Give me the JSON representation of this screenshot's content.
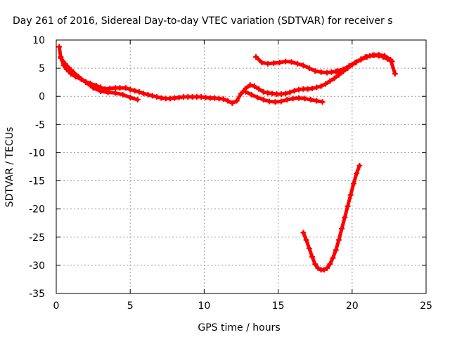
{
  "chart_data": {
    "type": "scatter",
    "title": "Day 261 of 2016, Sidereal Day-to-day VTEC variation (SDTVAR) for receiver s",
    "xlabel": "GPS time / hours",
    "ylabel": "SDTVAR / TECUs",
    "xlim": [
      0,
      25
    ],
    "ylim": [
      -35,
      10
    ],
    "xticks": [
      "0",
      "5",
      "10",
      "15",
      "20",
      "25"
    ],
    "yticks": [
      "10",
      "5",
      "0",
      "-5",
      "-10",
      "-15",
      "-20",
      "-25",
      "-30",
      "-35"
    ],
    "grid": true,
    "series_color": "#ff0000",
    "series": [
      {
        "x": [
          0.2,
          0.3,
          0.5,
          0.7,
          1.0,
          1.3,
          1.7,
          2.0,
          2.3,
          2.7,
          3.0,
          3.3,
          3.6,
          4.0,
          4.3,
          4.7,
          5.0,
          5.3,
          5.6,
          5.9,
          6.2,
          6.5,
          6.8,
          7.1,
          7.4,
          7.7,
          8.0,
          8.3,
          8.6,
          8.9,
          9.2,
          9.5,
          9.8,
          10.1,
          10.4,
          10.7,
          11.0,
          11.3,
          11.6,
          11.9,
          12.2,
          12.5,
          12.8,
          13.1,
          13.4,
          13.7,
          14.0,
          14.3,
          14.6,
          14.9,
          15.2,
          15.5,
          15.8,
          16.1,
          16.4,
          16.7,
          17.0,
          17.3,
          17.6,
          17.9,
          18.2,
          18.5,
          18.8,
          19.1,
          19.4,
          19.7,
          20.0,
          20.3,
          20.6,
          20.9,
          21.2,
          21.5,
          21.8,
          22.1,
          22.4,
          22.7
        ],
        "y": [
          8.8,
          7.0,
          5.5,
          4.8,
          4.0,
          3.5,
          3.0,
          2.6,
          2.3,
          1.9,
          1.6,
          1.3,
          1.4,
          1.5,
          1.5,
          1.5,
          1.2,
          1.0,
          0.8,
          0.5,
          0.3,
          0.1,
          -0.1,
          -0.3,
          -0.4,
          -0.4,
          -0.3,
          -0.2,
          -0.1,
          -0.1,
          -0.1,
          -0.1,
          -0.1,
          -0.2,
          -0.3,
          -0.3,
          -0.4,
          -0.5,
          -0.8,
          -1.2,
          -0.8,
          0.5,
          1.4,
          2.0,
          1.8,
          1.3,
          0.8,
          0.6,
          0.5,
          0.4,
          0.4,
          0.5,
          0.7,
          1.0,
          1.2,
          1.3,
          1.3,
          1.4,
          1.6,
          1.8,
          2.2,
          2.7,
          3.2,
          3.8,
          4.4,
          5.0,
          5.6,
          6.1,
          6.6,
          7.0,
          7.2,
          7.3,
          7.2,
          7.0,
          6.6,
          6.2
        ]
      },
      {
        "x": [
          0.3,
          0.6,
          1.0,
          1.5,
          2.0,
          2.5,
          3.0,
          3.5,
          4.0,
          4.5,
          5.0,
          5.5
        ],
        "y": [
          6.8,
          5.8,
          4.7,
          3.5,
          2.5,
          1.5,
          0.9,
          0.7,
          0.6,
          0.3,
          -0.2,
          -0.6
        ]
      },
      {
        "x": [
          12.8,
          13.2,
          13.6,
          14.0,
          14.4,
          14.8,
          15.2,
          15.6,
          16.0,
          16.4,
          16.8,
          17.2,
          17.6,
          18.0
        ],
        "y": [
          0.8,
          0.3,
          -0.2,
          -0.6,
          -0.9,
          -1.0,
          -0.9,
          -0.6,
          -0.4,
          -0.3,
          -0.4,
          -0.6,
          -0.8,
          -1.0
        ]
      },
      {
        "x": [
          13.5,
          13.9,
          14.3,
          14.7,
          15.1,
          15.5,
          15.9,
          16.3,
          16.7,
          17.1,
          17.5,
          17.9,
          18.3,
          18.6,
          18.9,
          19.2
        ],
        "y": [
          7.0,
          6.0,
          5.8,
          5.9,
          6.0,
          6.2,
          6.1,
          5.8,
          5.5,
          5.0,
          4.5,
          4.3,
          4.2,
          4.3,
          4.4,
          4.5
        ]
      },
      {
        "x": [
          19.0,
          19.4,
          19.8,
          20.2,
          20.6,
          21.0,
          21.4,
          21.8,
          22.2,
          22.6,
          22.9
        ],
        "y": [
          4.5,
          4.8,
          5.4,
          6.0,
          6.5,
          7.0,
          7.3,
          7.4,
          7.2,
          6.5,
          4.0
        ]
      },
      {
        "x": [
          16.7,
          16.9,
          17.1,
          17.3,
          17.5,
          17.7,
          17.9,
          18.1,
          18.3,
          18.5,
          18.7,
          18.9,
          19.1,
          19.3,
          19.5,
          19.7,
          19.9,
          20.1,
          20.3,
          20.5
        ],
        "y": [
          -24.2,
          -25.5,
          -27.0,
          -28.5,
          -29.8,
          -30.5,
          -30.8,
          -30.8,
          -30.5,
          -29.8,
          -28.7,
          -27.3,
          -25.5,
          -23.5,
          -21.5,
          -19.5,
          -17.5,
          -15.5,
          -13.7,
          -12.3
        ]
      }
    ]
  }
}
